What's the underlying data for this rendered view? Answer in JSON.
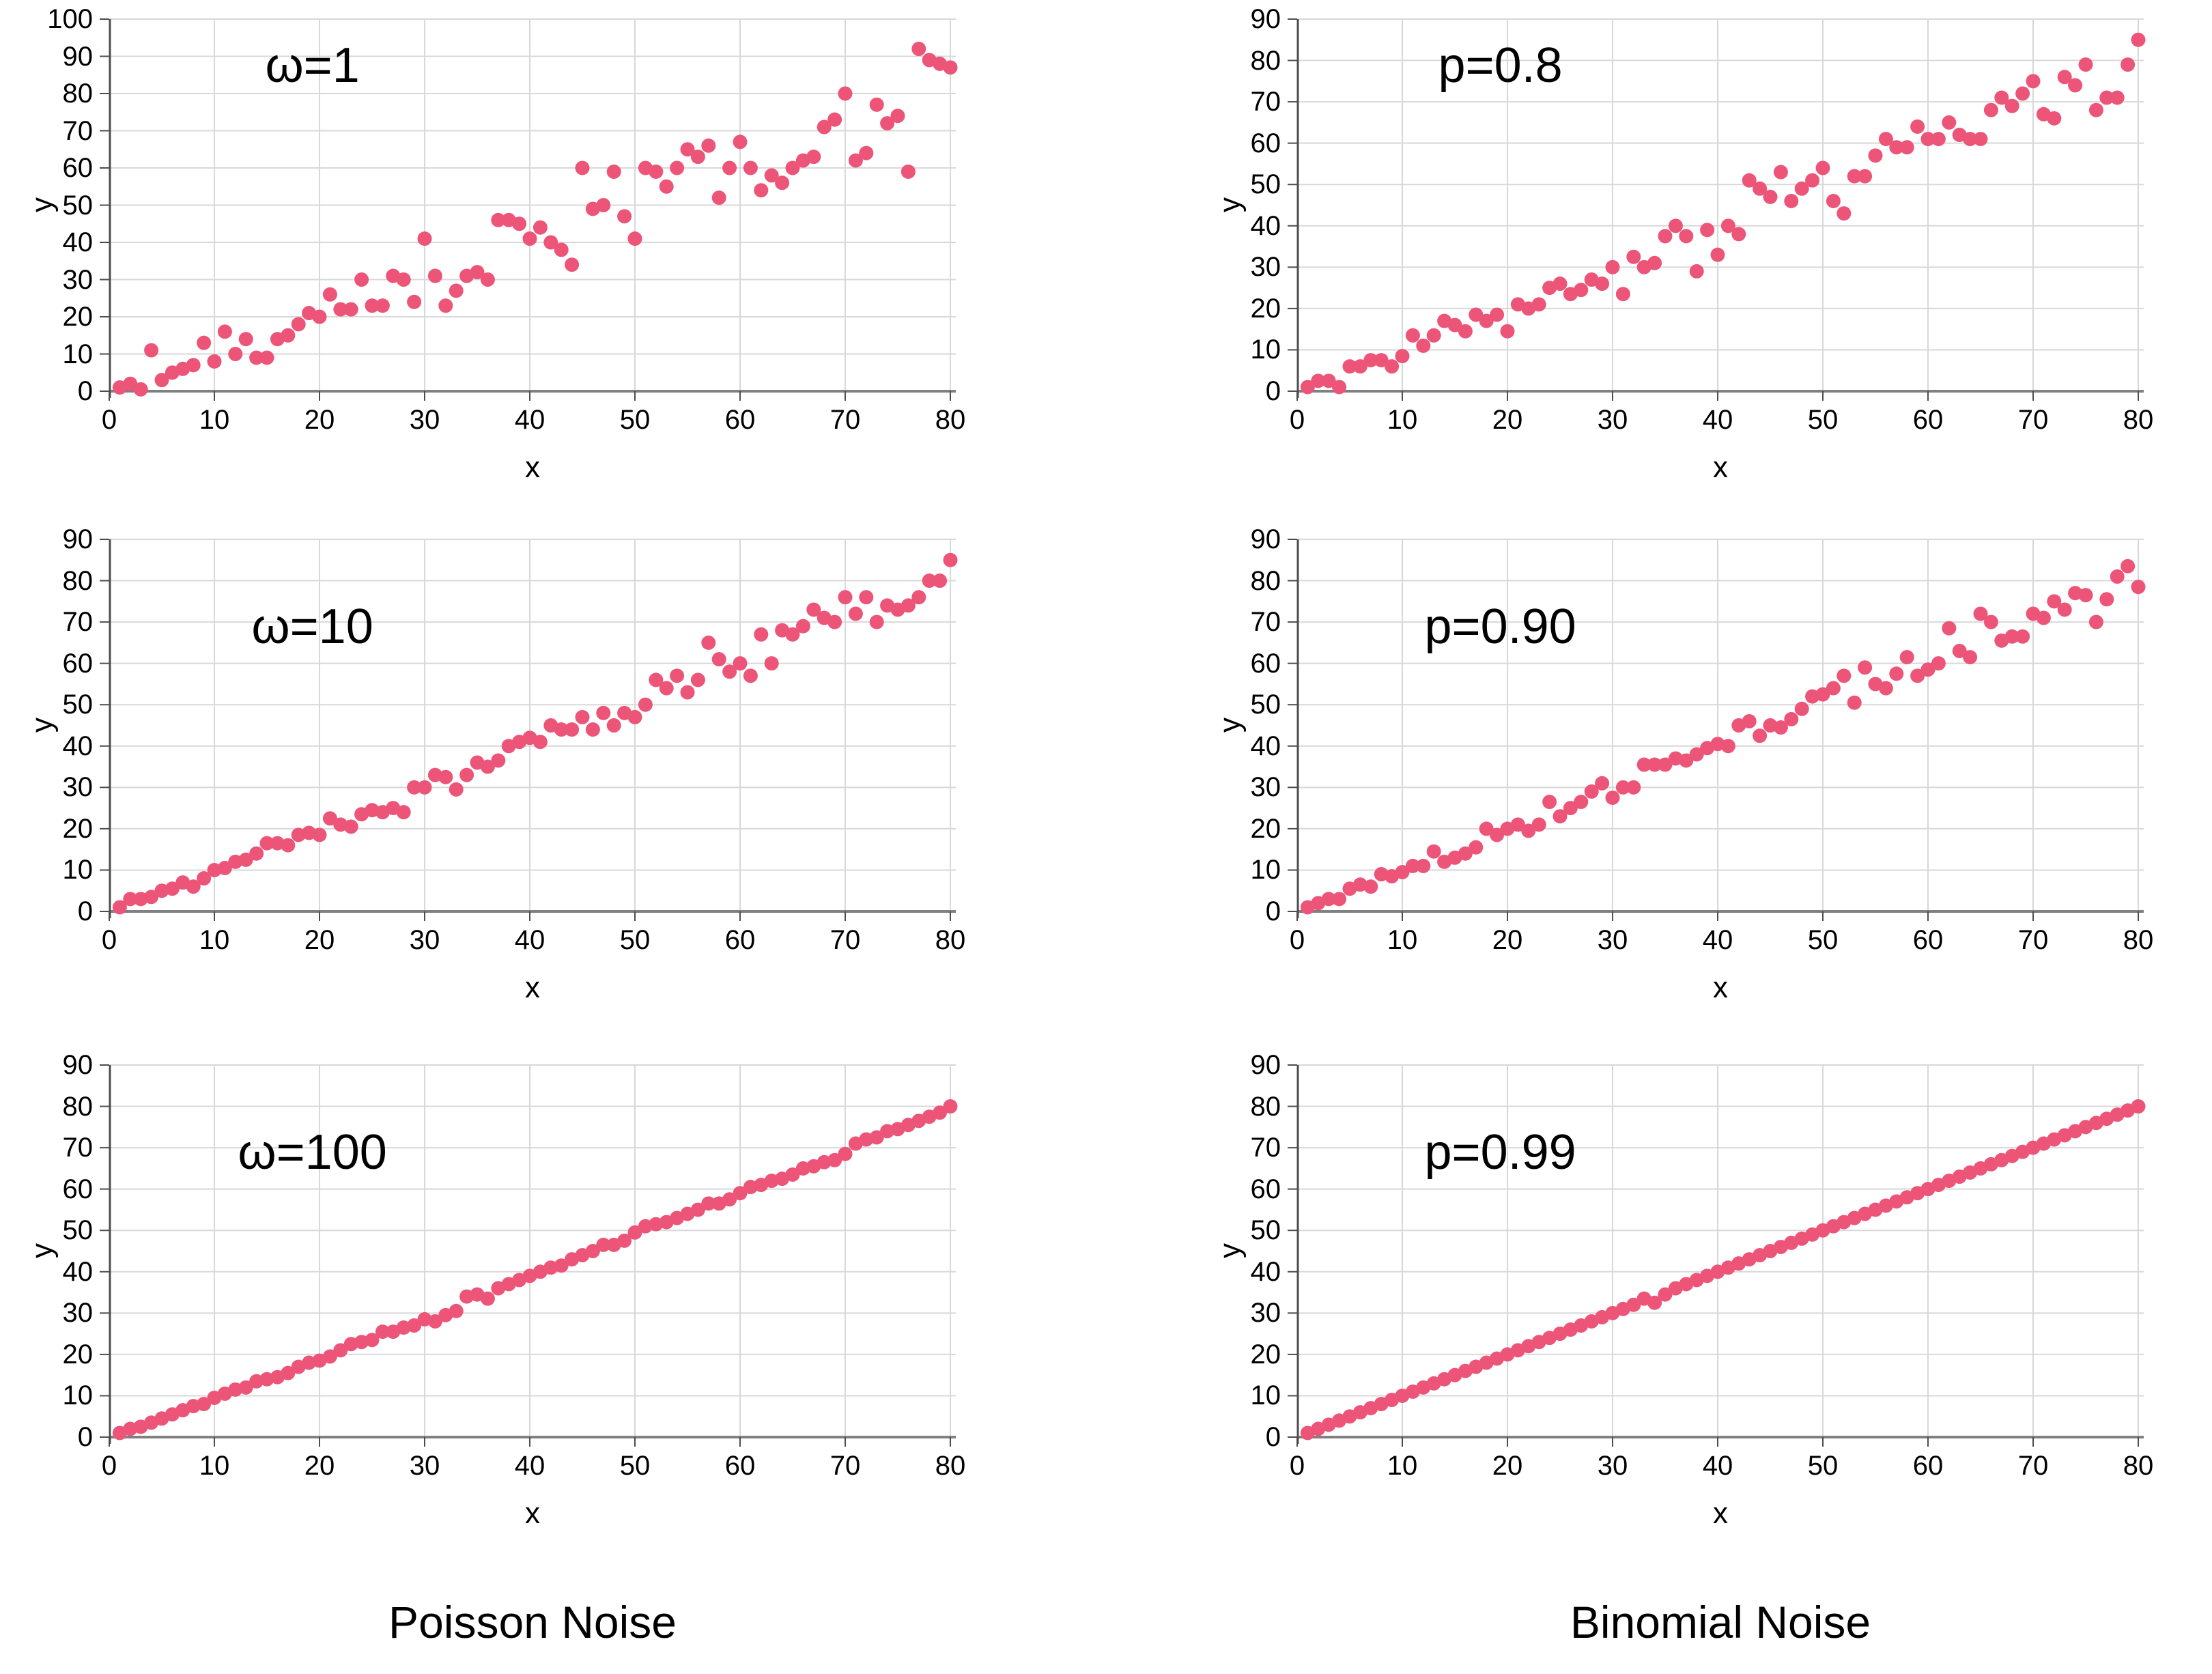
{
  "style": {
    "background": "#ffffff",
    "dot_color": "#ec5578",
    "grid_color": "#d8d8d8",
    "axis_color": "#4d4d4d",
    "zero_line_color": "#808080",
    "text_color": "#000000"
  },
  "columns": {
    "left_caption": "Poisson Noise",
    "right_caption": "Binomial Noise"
  },
  "x_shared": [
    1,
    2,
    3,
    4,
    5,
    6,
    7,
    8,
    9,
    10,
    11,
    12,
    13,
    14,
    15,
    16,
    17,
    18,
    19,
    20,
    21,
    22,
    23,
    24,
    25,
    26,
    27,
    28,
    29,
    30,
    31,
    32,
    33,
    34,
    35,
    36,
    37,
    38,
    39,
    40,
    41,
    42,
    43,
    44,
    45,
    46,
    47,
    48,
    49,
    50,
    51,
    52,
    53,
    54,
    55,
    56,
    57,
    58,
    59,
    60,
    61,
    62,
    63,
    64,
    65,
    66,
    67,
    68,
    69,
    70,
    71,
    72,
    73,
    74,
    75,
    76,
    77,
    78,
    79,
    80
  ],
  "chart_data": [
    {
      "id": "poisson-omega-1",
      "type": "scatter",
      "annotation": "ω=1",
      "xlabel": "x",
      "ylabel": "y",
      "xlim": [
        0,
        80
      ],
      "ylim": [
        0,
        100
      ],
      "grid": true,
      "x_ticks": [
        0,
        10,
        20,
        30,
        40,
        50,
        60,
        70,
        80
      ],
      "y_ticks": [
        0,
        10,
        20,
        30,
        40,
        50,
        60,
        70,
        80,
        90,
        100
      ],
      "y": [
        1,
        2,
        0.5,
        11,
        3,
        5,
        6,
        7,
        13,
        8,
        16,
        10,
        14,
        9,
        9,
        14,
        15,
        18,
        21,
        20,
        26,
        22,
        22,
        30,
        23,
        23,
        31,
        30,
        24,
        41,
        31,
        23,
        27,
        31,
        32,
        30,
        46,
        46,
        45,
        41,
        44,
        40,
        38,
        34,
        60,
        49,
        50,
        59,
        47,
        41,
        60,
        59,
        55,
        60,
        65,
        63,
        66,
        52,
        60,
        67,
        60,
        54,
        58,
        56,
        60,
        62,
        63,
        71,
        73,
        80,
        62,
        64,
        77,
        72,
        74,
        59,
        92,
        89,
        88,
        87
      ]
    },
    {
      "id": "poisson-omega-10",
      "type": "scatter",
      "annotation": "ω=10",
      "xlabel": "x",
      "ylabel": "y",
      "xlim": [
        0,
        80
      ],
      "ylim": [
        0,
        90
      ],
      "grid": true,
      "x_ticks": [
        0,
        10,
        20,
        30,
        40,
        50,
        60,
        70,
        80
      ],
      "y_ticks": [
        0,
        10,
        20,
        30,
        40,
        50,
        60,
        70,
        80,
        90
      ],
      "y": [
        1,
        3,
        3,
        3.5,
        5,
        5.5,
        7,
        6,
        8,
        10,
        10.5,
        12,
        12.5,
        14,
        16.5,
        16.5,
        16,
        18.5,
        19,
        18.5,
        22.5,
        21,
        20.5,
        23.5,
        24.5,
        24,
        25,
        24,
        30,
        30,
        33,
        32.5,
        29.5,
        33,
        36,
        35,
        36.5,
        40,
        41,
        42,
        41,
        45,
        44,
        44,
        47,
        44,
        48,
        45,
        48,
        47,
        50,
        56,
        54,
        57,
        53,
        56,
        65,
        61,
        58,
        60,
        57,
        67,
        60,
        68,
        67,
        69,
        73,
        71,
        70,
        76,
        72,
        76,
        70,
        74,
        73,
        74,
        76,
        80,
        80,
        85
      ]
    },
    {
      "id": "poisson-omega-100",
      "type": "scatter",
      "annotation": "ω=100",
      "xlabel": "x",
      "ylabel": "y",
      "xlim": [
        0,
        80
      ],
      "ylim": [
        0,
        90
      ],
      "grid": true,
      "x_ticks": [
        0,
        10,
        20,
        30,
        40,
        50,
        60,
        70,
        80
      ],
      "y_ticks": [
        0,
        10,
        20,
        30,
        40,
        50,
        60,
        70,
        80,
        90
      ],
      "y": [
        1,
        2,
        2.5,
        3.5,
        4.5,
        5.5,
        6.5,
        7.5,
        8,
        9.5,
        10.5,
        11.5,
        12,
        13.5,
        14,
        14.5,
        15.5,
        17,
        18,
        18.5,
        19.5,
        21,
        22.5,
        23,
        23.5,
        25.5,
        25.5,
        26.5,
        27,
        28.5,
        28,
        29.5,
        30.5,
        34,
        34.5,
        33.5,
        36,
        37,
        38,
        39,
        40,
        41,
        41.5,
        43,
        44,
        45,
        46.5,
        46.5,
        47.5,
        49.5,
        51,
        51.5,
        52,
        53,
        54,
        55,
        56.5,
        56.5,
        57.5,
        59,
        60.5,
        61,
        62,
        62.5,
        63.5,
        65,
        65.5,
        66.5,
        67,
        68.5,
        71,
        72,
        72.5,
        74,
        74.5,
        75.5,
        76.5,
        77.5,
        78.5,
        80
      ]
    },
    {
      "id": "binomial-p-0.8",
      "type": "scatter",
      "annotation": "p=0.8",
      "xlabel": "x",
      "ylabel": "y",
      "xlim": [
        0,
        80
      ],
      "ylim": [
        0,
        90
      ],
      "grid": true,
      "x_ticks": [
        0,
        10,
        20,
        30,
        40,
        50,
        60,
        70,
        80
      ],
      "y_ticks": [
        0,
        10,
        20,
        30,
        40,
        50,
        60,
        70,
        80,
        90
      ],
      "y": [
        1,
        2.5,
        2.5,
        1,
        6,
        6,
        7.5,
        7.5,
        6,
        8.5,
        13.5,
        11,
        13.5,
        17,
        16,
        14.5,
        18.5,
        17,
        18.5,
        14.5,
        21,
        20,
        21,
        25,
        26,
        23.5,
        24.5,
        27,
        26,
        30,
        23.5,
        32.5,
        30,
        31,
        37.5,
        40,
        37.5,
        29,
        39,
        33,
        40,
        38,
        51,
        49,
        47,
        53,
        46,
        49,
        51,
        54,
        46,
        43,
        52,
        52,
        57,
        61,
        59,
        59,
        64,
        61,
        61,
        65,
        62,
        61,
        61,
        68,
        71,
        69,
        72,
        75,
        67,
        66,
        76,
        74,
        79,
        68,
        71,
        71,
        79,
        85
      ]
    },
    {
      "id": "binomial-p-0.90",
      "type": "scatter",
      "annotation": "p=0.90",
      "xlabel": "x",
      "ylabel": "y",
      "xlim": [
        0,
        80
      ],
      "ylim": [
        0,
        90
      ],
      "grid": true,
      "x_ticks": [
        0,
        10,
        20,
        30,
        40,
        50,
        60,
        70,
        80
      ],
      "y_ticks": [
        0,
        10,
        20,
        30,
        40,
        50,
        60,
        70,
        80,
        90
      ],
      "y": [
        1,
        2,
        3,
        3,
        5.5,
        6.5,
        6,
        9,
        8.5,
        9.5,
        11,
        11,
        14.5,
        12,
        13,
        14,
        15.5,
        20,
        18.5,
        20,
        21,
        19.5,
        21,
        26.5,
        23,
        25,
        26.5,
        29,
        31,
        27.5,
        30,
        30,
        35.5,
        35.5,
        35.5,
        37,
        36.5,
        38,
        39.5,
        40.5,
        40,
        45,
        46,
        42.5,
        45,
        44.5,
        46.5,
        49,
        52,
        52.5,
        54,
        57,
        50.5,
        59,
        55,
        54,
        57.5,
        61.5,
        57,
        58.5,
        60,
        68.5,
        63,
        61.5,
        72,
        70,
        65.5,
        66.5,
        66.5,
        72,
        71,
        75,
        73,
        77,
        76.5,
        70,
        75.5,
        81,
        83.5,
        78.5
      ]
    },
    {
      "id": "binomial-p-0.99",
      "type": "scatter",
      "annotation": "p=0.99",
      "xlabel": "x",
      "ylabel": "y",
      "xlim": [
        0,
        80
      ],
      "ylim": [
        0,
        90
      ],
      "grid": true,
      "x_ticks": [
        0,
        10,
        20,
        30,
        40,
        50,
        60,
        70,
        80
      ],
      "y_ticks": [
        0,
        10,
        20,
        30,
        40,
        50,
        60,
        70,
        80,
        90
      ],
      "y": [
        1,
        2,
        3,
        4,
        5,
        6,
        7,
        8,
        9,
        10,
        11,
        12,
        13,
        14,
        15,
        16,
        17,
        18,
        19,
        20,
        21,
        22,
        23,
        24,
        25,
        26,
        27,
        28,
        29,
        30,
        31,
        32,
        33.5,
        32.5,
        34.5,
        36,
        37,
        38,
        39,
        40,
        41,
        42,
        43,
        44,
        45,
        46,
        47,
        48,
        49,
        50,
        51,
        52,
        53,
        54,
        55,
        56,
        57,
        58,
        59,
        60,
        61,
        62,
        63,
        64,
        65,
        66,
        67,
        68,
        69,
        70,
        71,
        72,
        73,
        74,
        75,
        76,
        77,
        78,
        79,
        80
      ]
    }
  ]
}
